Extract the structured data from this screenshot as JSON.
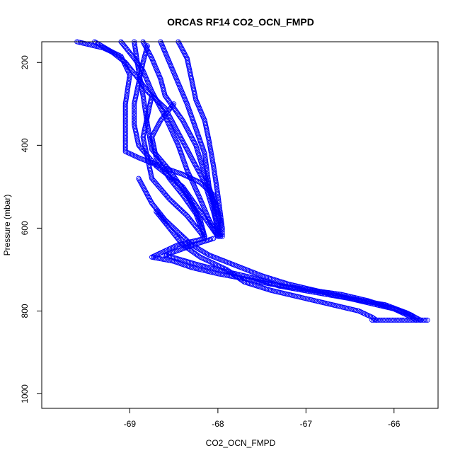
{
  "chart_data": {
    "type": "scatter",
    "title": "ORCAS RF14 CO2_OCN_FMPD",
    "xlabel": "CO2_OCN_FMPD",
    "ylabel": "Pressure (mbar)",
    "xlim": [
      -70.0,
      -65.5
    ],
    "ylim": [
      1035,
      150
    ],
    "y_inverted": true,
    "x_ticks": [
      -69,
      -68,
      -67,
      -66
    ],
    "y_ticks": [
      200,
      400,
      600,
      800,
      1000
    ],
    "grid": false,
    "marker": "open-circle",
    "series_color": "#0000ff",
    "segments": [
      [
        [
          -69.6,
          150
        ],
        [
          -69.3,
          165
        ],
        [
          -69.1,
          185
        ],
        [
          -69.0,
          230
        ],
        [
          -69.05,
          300
        ],
        [
          -69.05,
          360
        ],
        [
          -69.05,
          415
        ],
        [
          -68.9,
          430
        ],
        [
          -68.6,
          455
        ],
        [
          -68.4,
          470
        ],
        [
          -68.2,
          490
        ],
        [
          -68.05,
          520
        ],
        [
          -68.0,
          560
        ],
        [
          -67.95,
          600
        ],
        [
          -67.95,
          620
        ]
      ],
      [
        [
          -69.4,
          150
        ],
        [
          -69.2,
          175
        ],
        [
          -69.05,
          200
        ],
        [
          -68.9,
          240
        ],
        [
          -68.8,
          270
        ],
        [
          -68.6,
          310
        ],
        [
          -68.45,
          370
        ],
        [
          -68.3,
          430
        ],
        [
          -68.15,
          490
        ],
        [
          -68.05,
          560
        ],
        [
          -67.98,
          620
        ]
      ],
      [
        [
          -69.1,
          150
        ],
        [
          -68.95,
          190
        ],
        [
          -68.85,
          220
        ],
        [
          -68.75,
          270
        ],
        [
          -68.6,
          330
        ],
        [
          -68.45,
          400
        ],
        [
          -68.35,
          460
        ],
        [
          -68.2,
          530
        ],
        [
          -68.1,
          580
        ],
        [
          -68.0,
          620
        ]
      ],
      [
        [
          -68.85,
          150
        ],
        [
          -68.75,
          190
        ],
        [
          -68.65,
          240
        ],
        [
          -68.6,
          280
        ],
        [
          -68.4,
          340
        ],
        [
          -68.25,
          400
        ],
        [
          -68.15,
          470
        ],
        [
          -68.05,
          540
        ],
        [
          -68.0,
          620
        ]
      ],
      [
        [
          -68.65,
          150
        ],
        [
          -68.55,
          200
        ],
        [
          -68.45,
          250
        ],
        [
          -68.35,
          300
        ],
        [
          -68.25,
          360
        ],
        [
          -68.15,
          420
        ],
        [
          -68.1,
          500
        ],
        [
          -68.0,
          570
        ],
        [
          -67.97,
          620
        ]
      ],
      [
        [
          -68.45,
          150
        ],
        [
          -68.35,
          190
        ],
        [
          -68.3,
          240
        ],
        [
          -68.25,
          290
        ],
        [
          -68.15,
          340
        ],
        [
          -68.1,
          390
        ],
        [
          -68.05,
          450
        ],
        [
          -68.0,
          520
        ],
        [
          -67.95,
          600
        ]
      ],
      [
        [
          -68.95,
          150
        ],
        [
          -68.9,
          220
        ],
        [
          -68.85,
          280
        ],
        [
          -68.8,
          350
        ],
        [
          -68.75,
          410
        ],
        [
          -68.55,
          460
        ],
        [
          -68.35,
          520
        ],
        [
          -68.2,
          580
        ],
        [
          -68.15,
          620
        ]
      ],
      [
        [
          -68.75,
          280
        ],
        [
          -68.8,
          330
        ],
        [
          -68.85,
          380
        ],
        [
          -68.8,
          430
        ],
        [
          -68.75,
          480
        ],
        [
          -68.55,
          530
        ],
        [
          -68.35,
          570
        ],
        [
          -68.2,
          610
        ],
        [
          -68.15,
          625
        ]
      ],
      [
        [
          -68.5,
          300
        ],
        [
          -68.65,
          340
        ],
        [
          -68.75,
          380
        ],
        [
          -68.7,
          430
        ],
        [
          -68.55,
          480
        ],
        [
          -68.4,
          520
        ],
        [
          -68.25,
          565
        ],
        [
          -68.15,
          620
        ]
      ],
      [
        [
          -68.8,
          160
        ],
        [
          -68.85,
          200
        ],
        [
          -68.9,
          250
        ],
        [
          -68.95,
          300
        ],
        [
          -68.95,
          350
        ],
        [
          -68.9,
          400
        ],
        [
          -68.7,
          450
        ],
        [
          -68.4,
          500
        ],
        [
          -68.2,
          560
        ],
        [
          -68.0,
          620
        ]
      ],
      [
        [
          -68.15,
          625
        ],
        [
          -68.25,
          630
        ],
        [
          -68.45,
          640
        ],
        [
          -68.6,
          655
        ],
        [
          -68.75,
          670
        ],
        [
          -68.5,
          680
        ],
        [
          -68.3,
          695
        ],
        [
          -68.0,
          710
        ],
        [
          -67.7,
          722
        ],
        [
          -67.4,
          735
        ],
        [
          -67.0,
          748
        ],
        [
          -66.6,
          760
        ],
        [
          -66.3,
          775
        ],
        [
          -66.0,
          795
        ],
        [
          -65.8,
          815
        ],
        [
          -65.75,
          822
        ]
      ],
      [
        [
          -68.05,
          625
        ],
        [
          -68.2,
          635
        ],
        [
          -68.4,
          650
        ],
        [
          -68.6,
          665
        ],
        [
          -68.2,
          690
        ],
        [
          -67.9,
          705
        ],
        [
          -67.6,
          720
        ],
        [
          -67.3,
          740
        ],
        [
          -66.9,
          755
        ],
        [
          -66.5,
          770
        ],
        [
          -66.1,
          785
        ],
        [
          -65.85,
          805
        ],
        [
          -65.7,
          822
        ]
      ],
      [
        [
          -68.7,
          560
        ],
        [
          -68.55,
          600
        ],
        [
          -68.4,
          640
        ],
        [
          -68.2,
          670
        ],
        [
          -67.9,
          700
        ],
        [
          -67.7,
          730
        ],
        [
          -67.4,
          750
        ],
        [
          -67.0,
          770
        ],
        [
          -66.7,
          785
        ],
        [
          -66.4,
          800
        ],
        [
          -66.25,
          815
        ],
        [
          -66.2,
          822
        ]
      ],
      [
        [
          -68.9,
          480
        ],
        [
          -68.75,
          540
        ],
        [
          -68.6,
          580
        ],
        [
          -68.45,
          610
        ],
        [
          -68.3,
          640
        ],
        [
          -68.1,
          665
        ],
        [
          -67.8,
          690
        ],
        [
          -67.5,
          715
        ],
        [
          -67.2,
          735
        ],
        [
          -66.8,
          755
        ],
        [
          -66.4,
          775
        ],
        [
          -66.0,
          795
        ],
        [
          -65.8,
          810
        ]
      ],
      [
        [
          -66.25,
          822
        ],
        [
          -66.0,
          822
        ],
        [
          -65.8,
          822
        ],
        [
          -65.62,
          822
        ]
      ]
    ]
  }
}
